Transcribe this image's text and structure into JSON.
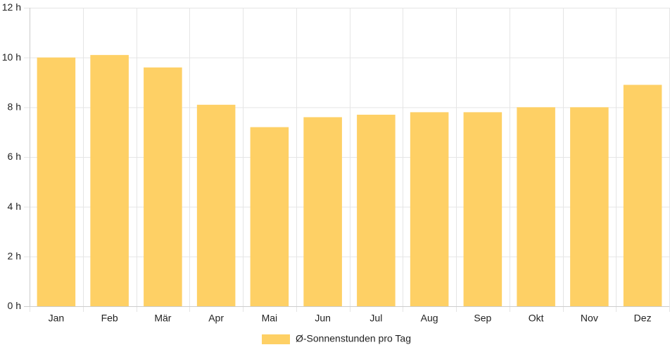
{
  "chart_data": {
    "type": "bar",
    "categories": [
      "Jan",
      "Feb",
      "Mär",
      "Apr",
      "Mai",
      "Jun",
      "Jul",
      "Aug",
      "Sep",
      "Okt",
      "Nov",
      "Dez"
    ],
    "series": [
      {
        "name": "Ø-Sonnenstunden pro Tag",
        "values": [
          10.0,
          10.1,
          9.6,
          8.1,
          7.2,
          7.6,
          7.7,
          7.8,
          7.8,
          8.0,
          8.0,
          8.9
        ],
        "color": "#fed065"
      }
    ],
    "y_ticks": [
      "0 h",
      "2 h",
      "4 h",
      "6 h",
      "8 h",
      "10 h",
      "12 h"
    ],
    "ylim": [
      0,
      12
    ],
    "y_unit": "h",
    "grid": true,
    "legend_position": "bottom",
    "title": "",
    "xlabel": "",
    "ylabel": "",
    "colors": {
      "grid": "#e5e5e5",
      "axis": "#cccccc",
      "text": "#222222"
    }
  }
}
